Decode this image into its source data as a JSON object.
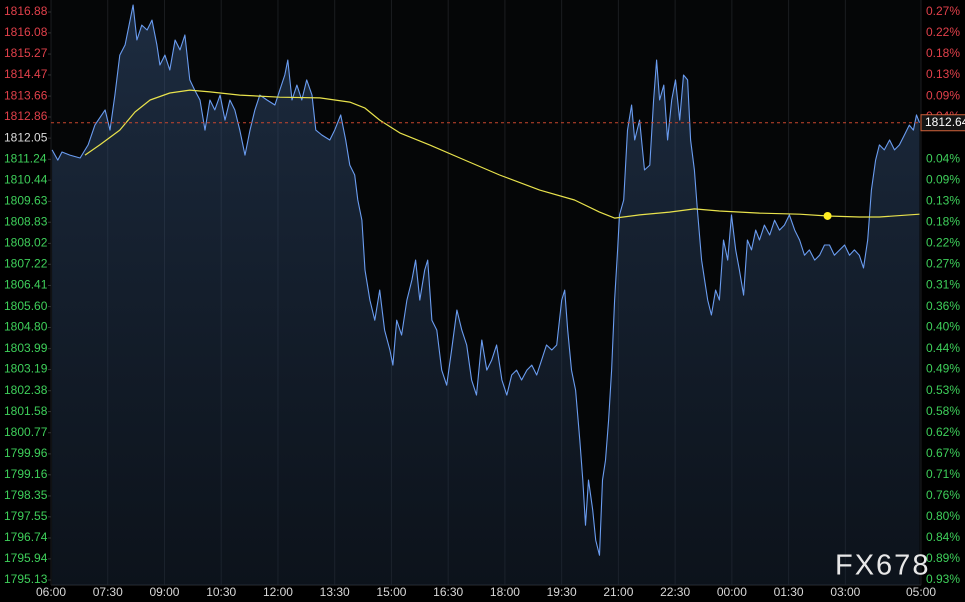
{
  "chart_data": {
    "type": "line",
    "xlim": [
      0,
      23
    ],
    "ylim": [
      1794.94,
      1817.34
    ],
    "grid": "x",
    "reference": 1812.05,
    "up_color": "#e0404a",
    "down_color": "#3ecf5a",
    "flat_color": "#dddddd",
    "xticks": [
      {
        "value": 0,
        "label": "06:00"
      },
      {
        "value": 1.5,
        "label": "07:30"
      },
      {
        "value": 3,
        "label": "09:00"
      },
      {
        "value": 4.5,
        "label": "10:30"
      },
      {
        "value": 6,
        "label": "12:00"
      },
      {
        "value": 7.5,
        "label": "13:30"
      },
      {
        "value": 9,
        "label": "15:00"
      },
      {
        "value": 10.5,
        "label": "16:30"
      },
      {
        "value": 12,
        "label": "18:00"
      },
      {
        "value": 13.5,
        "label": "19:30"
      },
      {
        "value": 15,
        "label": "21:00"
      },
      {
        "value": 16.5,
        "label": "22:30"
      },
      {
        "value": 18,
        "label": "00:00"
      },
      {
        "value": 19.5,
        "label": "01:30"
      },
      {
        "value": 21,
        "label": "03:00"
      },
      {
        "value": 23,
        "label": "05:00"
      }
    ],
    "yticks": [
      1816.88,
      1816.08,
      1815.27,
      1814.47,
      1813.66,
      1812.86,
      1812.05,
      1811.24,
      1810.44,
      1809.63,
      1808.83,
      1808.02,
      1807.22,
      1806.41,
      {
        "value": 1805.6,
        "label": "1805.60"
      },
      {
        "value": 1804.8,
        "label": "1804.80"
      },
      1803.99,
      1803.19,
      1802.38,
      1801.58,
      1800.77,
      1799.96,
      1799.16,
      1798.35,
      1797.55,
      1796.74,
      1795.94,
      1795.13
    ],
    "right_labels": [
      "0.27%",
      "0.22%",
      "0.18%",
      "0.13%",
      "0.09%",
      "0.04%",
      null,
      "0.04%",
      "0.09%",
      "0.13%",
      "0.18%",
      "0.22%",
      "0.27%",
      "0.31%",
      "0.36%",
      "0.40%",
      "0.44%",
      "0.49%",
      "0.53%",
      "0.58%",
      "0.62%",
      "0.67%",
      "0.71%",
      "0.76%",
      "0.80%",
      "0.84%",
      "0.89%",
      "0.93%"
    ],
    "last_price": 1812.64,
    "watermark": "FX678",
    "marker": {
      "x": 20.53,
      "y": 1809.07,
      "color": "#ffee22"
    },
    "series": [
      {
        "color": "#6a9cf0",
        "x": [
          0.03,
          0.18,
          0.29,
          0.5,
          0.77,
          0.98,
          1.16,
          1.43,
          1.56,
          1.69,
          1.82,
          1.96,
          2.17,
          2.27,
          2.4,
          2.54,
          2.67,
          2.8,
          2.88,
          3.01,
          3.14,
          3.28,
          3.41,
          3.54,
          3.67,
          3.8,
          3.94,
          4.07,
          4.2,
          4.33,
          4.47,
          4.6,
          4.73,
          4.86,
          4.99,
          5.13,
          5.26,
          5.39,
          5.52,
          5.71,
          5.92,
          6.05,
          6.18,
          6.26,
          6.37,
          6.5,
          6.63,
          6.76,
          6.9,
          7.0,
          7.16,
          7.37,
          7.5,
          7.66,
          7.79,
          7.9,
          8.03,
          8.11,
          8.22,
          8.3,
          8.43,
          8.56,
          8.69,
          8.82,
          8.96,
          9.04,
          9.14,
          9.27,
          9.41,
          9.54,
          9.64,
          9.75,
          9.88,
          9.96,
          10.07,
          10.2,
          10.33,
          10.46,
          10.59,
          10.73,
          10.86,
          10.99,
          11.12,
          11.25,
          11.39,
          11.52,
          11.65,
          11.78,
          11.92,
          12.05,
          12.18,
          12.31,
          12.44,
          12.58,
          12.71,
          12.84,
          12.97,
          13.1,
          13.24,
          13.37,
          13.5,
          13.58,
          13.66,
          13.76,
          13.87,
          13.98,
          14.06,
          14.13,
          14.21,
          14.32,
          14.4,
          14.5,
          14.58,
          14.66,
          14.74,
          14.82,
          14.9,
          14.98,
          15.03,
          15.14,
          15.24,
          15.35,
          15.43,
          15.56,
          15.69,
          15.83,
          15.93,
          16.01,
          16.09,
          16.2,
          16.3,
          16.41,
          16.51,
          16.62,
          16.72,
          16.83,
          16.91,
          17.01,
          17.09,
          17.2,
          17.28,
          17.36,
          17.46,
          17.57,
          17.67,
          17.78,
          17.89,
          17.99,
          18.1,
          18.2,
          18.31,
          18.41,
          18.52,
          18.63,
          18.73,
          18.86,
          19.0,
          19.13,
          19.26,
          19.39,
          19.52,
          19.66,
          19.79,
          19.92,
          20.05,
          20.19,
          20.32,
          20.45,
          20.58,
          20.71,
          20.85,
          20.98,
          21.11,
          21.24,
          21.37,
          21.48,
          21.59,
          21.69,
          21.8,
          21.9,
          22.03,
          22.17,
          22.3,
          22.43,
          22.56,
          22.69,
          22.8,
          22.88,
          22.96
        ],
        "values": [
          1811.6,
          1811.21,
          1811.52,
          1811.4,
          1811.29,
          1811.79,
          1812.55,
          1813.13,
          1812.36,
          1813.7,
          1815.23,
          1815.62,
          1817.15,
          1815.81,
          1816.38,
          1816.19,
          1816.57,
          1815.62,
          1814.85,
          1815.23,
          1814.66,
          1815.81,
          1815.43,
          1816.0,
          1814.28,
          1813.89,
          1813.51,
          1812.36,
          1813.51,
          1813.13,
          1813.7,
          1812.74,
          1813.51,
          1813.13,
          1812.36,
          1811.4,
          1812.36,
          1813.13,
          1813.7,
          1813.51,
          1813.32,
          1813.89,
          1814.47,
          1815.04,
          1813.51,
          1814.08,
          1813.51,
          1814.28,
          1813.7,
          1812.36,
          1812.17,
          1811.98,
          1812.36,
          1812.94,
          1811.98,
          1811.02,
          1810.64,
          1809.68,
          1808.91,
          1807.0,
          1805.85,
          1805.08,
          1806.23,
          1804.7,
          1803.94,
          1803.36,
          1805.08,
          1804.51,
          1805.85,
          1806.62,
          1807.38,
          1805.85,
          1807.0,
          1807.38,
          1805.08,
          1804.7,
          1803.17,
          1802.59,
          1803.94,
          1805.47,
          1804.7,
          1804.13,
          1802.79,
          1802.21,
          1804.32,
          1803.17,
          1803.55,
          1804.13,
          1802.79,
          1802.21,
          1802.98,
          1803.17,
          1802.79,
          1803.17,
          1803.36,
          1802.98,
          1803.55,
          1804.13,
          1803.94,
          1804.13,
          1805.85,
          1806.23,
          1804.7,
          1803.17,
          1802.4,
          1800.49,
          1798.96,
          1797.23,
          1798.96,
          1797.81,
          1796.66,
          1796.08,
          1798.96,
          1799.72,
          1801.25,
          1803.17,
          1805.85,
          1807.77,
          1809.11,
          1809.68,
          1812.36,
          1813.32,
          1811.98,
          1812.74,
          1810.83,
          1811.02,
          1813.51,
          1815.04,
          1813.51,
          1814.08,
          1811.98,
          1813.51,
          1814.28,
          1812.74,
          1814.47,
          1814.28,
          1811.98,
          1810.83,
          1809.3,
          1807.38,
          1806.62,
          1805.85,
          1805.28,
          1806.23,
          1805.85,
          1808.15,
          1807.38,
          1809.11,
          1807.77,
          1807.0,
          1806.04,
          1808.15,
          1807.77,
          1808.53,
          1808.15,
          1808.72,
          1808.34,
          1808.91,
          1808.53,
          1808.72,
          1809.11,
          1808.53,
          1808.15,
          1807.57,
          1807.77,
          1807.38,
          1807.57,
          1807.96,
          1807.96,
          1807.57,
          1807.77,
          1807.96,
          1807.57,
          1807.77,
          1807.57,
          1807.08,
          1808.15,
          1810.06,
          1811.21,
          1811.79,
          1811.6,
          1811.98,
          1811.6,
          1811.79,
          1812.17,
          1812.55,
          1812.36,
          1812.94,
          1812.64
        ]
      },
      {
        "color": "#e8e24c",
        "x": [
          0.9,
          1.29,
          1.82,
          2.22,
          2.62,
          3.14,
          3.67,
          4.2,
          4.99,
          6.05,
          7.11,
          7.9,
          8.3,
          8.69,
          9.22,
          10.01,
          10.81,
          11.86,
          12.92,
          13.84,
          14.5,
          14.9,
          15.56,
          16.35,
          17.01,
          17.67,
          18.73,
          19.79,
          20.53,
          21.37,
          21.9,
          22.96
        ],
        "values": [
          1811.4,
          1811.79,
          1812.36,
          1813.05,
          1813.51,
          1813.78,
          1813.89,
          1813.82,
          1813.7,
          1813.62,
          1813.59,
          1813.43,
          1813.2,
          1812.74,
          1812.25,
          1811.79,
          1811.29,
          1810.64,
          1810.06,
          1809.68,
          1809.22,
          1808.99,
          1809.11,
          1809.22,
          1809.34,
          1809.26,
          1809.18,
          1809.14,
          1809.07,
          1809.03,
          1809.03,
          1809.14
        ]
      }
    ]
  }
}
